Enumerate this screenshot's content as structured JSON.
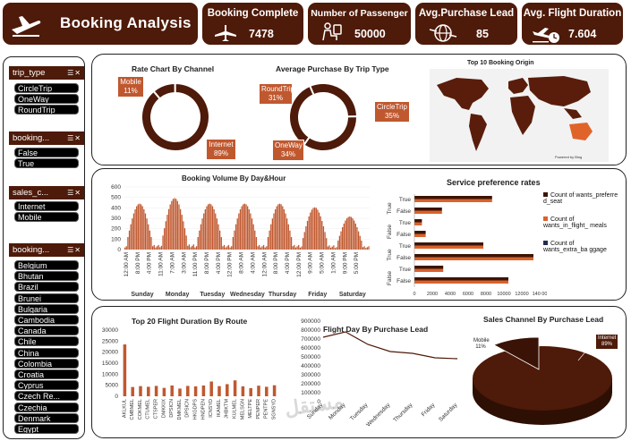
{
  "header": {
    "title": "Booking Analysis",
    "kpis": [
      {
        "label": "Booking Complete",
        "value": "7478",
        "icon": "airplane-icon"
      },
      {
        "label": "Number of Passenger",
        "value": "50000",
        "icon": "passenger-icon"
      },
      {
        "label": "Avg.Purchase Lead",
        "value": "85",
        "icon": "globe-plane-icon"
      },
      {
        "label": "Avg. Flight Duration",
        "value": "7.604",
        "icon": "takeoff-clock-icon"
      }
    ]
  },
  "slicers": [
    {
      "title": "trip_type",
      "items": [
        "CircleTrip",
        "OneWay",
        "RoundTrip"
      ]
    },
    {
      "title": "booking...",
      "items": [
        "False",
        "True"
      ]
    },
    {
      "title": "sales_c...",
      "items": [
        "Internet",
        "Mobile"
      ]
    },
    {
      "title": "booking...",
      "items": [
        "Belgium",
        "Bhutan",
        "Brazil",
        "Brunei",
        "Bulgaria",
        "Cambodia",
        "Canada",
        "Chile",
        "China",
        "Colombia",
        "Croatia",
        "Cyprus",
        "Czech Re...",
        "Czechia",
        "Denmark",
        "Egypt"
      ]
    }
  ],
  "charts": {
    "channel": {
      "title": "Rate Chart By Channel",
      "slices": [
        {
          "label": "Mobile",
          "pct": "11%",
          "value": 11
        },
        {
          "label": "Internet",
          "pct": "89%",
          "value": 89
        }
      ]
    },
    "trip": {
      "title": "Average Purchase By Trip Type",
      "slices": [
        {
          "label": "RoundTrip",
          "pct": "31%",
          "value": 31
        },
        {
          "label": "CircleTrip",
          "pct": "35%",
          "value": 35
        },
        {
          "label": "OneWay",
          "pct": "34%",
          "value": 34
        }
      ]
    },
    "map": {
      "title": "Top 10 Booking Origin"
    },
    "volume": {
      "title": "Booking Volume By Day&Hour",
      "yticks": [
        "600",
        "500",
        "400",
        "300",
        "200",
        "100",
        "0"
      ],
      "hour_labels": [
        "12:00 AM",
        "8:00 PM",
        "4:00 PM",
        "11:00 AM",
        "7:00 AM",
        "3:00 AM",
        "11:00 PM",
        "8:00 PM",
        "4:00 PM",
        "12:00 PM",
        "8:00 AM",
        "4:00 AM",
        "12:00 AM",
        "8:00 PM",
        "4:00 PM",
        "12:00 PM",
        "9:00 AM",
        "5:00 AM",
        "1:00 AM",
        "9:00 PM",
        "5:00 PM"
      ],
      "days": [
        "Sunday",
        "Monday",
        "Tuesday",
        "Wednesday",
        "Thursday",
        "Friday",
        "Saturday"
      ]
    },
    "service": {
      "title": "Service preference rates",
      "legend": [
        "Count of wants_preferre d_seat",
        "Count of wants_in_flight_ meals",
        "Count of wants_extra_ba ggage"
      ],
      "colors": [
        "#3b1405",
        "#d9622b",
        "#1f2d4e"
      ],
      "rows": [
        {
          "l": "True",
          "a": 0.62,
          "b": 0
        },
        {
          "l": "False",
          "a": 0.22,
          "b": 0
        },
        {
          "l": "True",
          "a": 0.06,
          "b": 0
        },
        {
          "l": "False",
          "a": 0.09,
          "b": 0
        },
        {
          "l": "True",
          "a": 0.55,
          "b": 0
        },
        {
          "l": "False",
          "a": 0.95,
          "b": 0
        },
        {
          "l": "True",
          "a": 0.23,
          "b": 0
        },
        {
          "l": "False",
          "a": 0.75,
          "b": 0
        }
      ],
      "group_labels": [
        "True",
        "False",
        "True",
        "False"
      ],
      "xticks": [
        "0",
        "2000",
        "4000",
        "6000",
        "8000",
        "10000",
        "12000",
        "140 00"
      ]
    },
    "duration": {
      "title": "Top 20 Flight Duration By Route",
      "yticks": [
        "30000",
        "25000",
        "20000",
        "15000",
        "10000",
        "5000",
        "0"
      ],
      "routes": [
        "AKLKUL",
        "CMBMEL",
        "COKMEL",
        "CTUMEL",
        "CTSPER",
        "DMKKIX",
        "DPSICN",
        "DMKMEL",
        "DPSICN",
        "HKGDPS",
        "HNDPEN",
        "ICNSYD",
        "IKAMEL",
        "JHBKTM",
        "KULMEL",
        "MELSGN",
        "MELTPE",
        "PENPER",
        "PENTPE",
        "SGNSYD"
      ],
      "values": [
        23500,
        4200,
        4600,
        4300,
        4700,
        3800,
        4900,
        3500,
        4700,
        4500,
        4900,
        6700,
        4600,
        5500,
        7200,
        4500,
        3700,
        4800,
        4300,
        5000
      ]
    },
    "flightday": {
      "title": "Flight Day By Purchase Lead",
      "yticks": [
        "900000",
        "800000",
        "700000",
        "600000",
        "500000",
        "400000",
        "300000",
        "200000",
        "100000",
        "0"
      ],
      "days": [
        "Sunday",
        "Monday",
        "Tuesday",
        "Wednesday",
        "Thursday",
        "Friday",
        "Saturday"
      ],
      "values": [
        720000,
        780000,
        640000,
        560000,
        540000,
        490000,
        480000
      ]
    },
    "sales": {
      "title": "Sales Channel By  Purchase Lead",
      "slices": [
        {
          "label": "Mobile",
          "pct": "11%",
          "value": 11
        },
        {
          "label": "Internet",
          "pct": "89%",
          "value": 89
        }
      ]
    }
  },
  "watermark": "مستقل"
}
